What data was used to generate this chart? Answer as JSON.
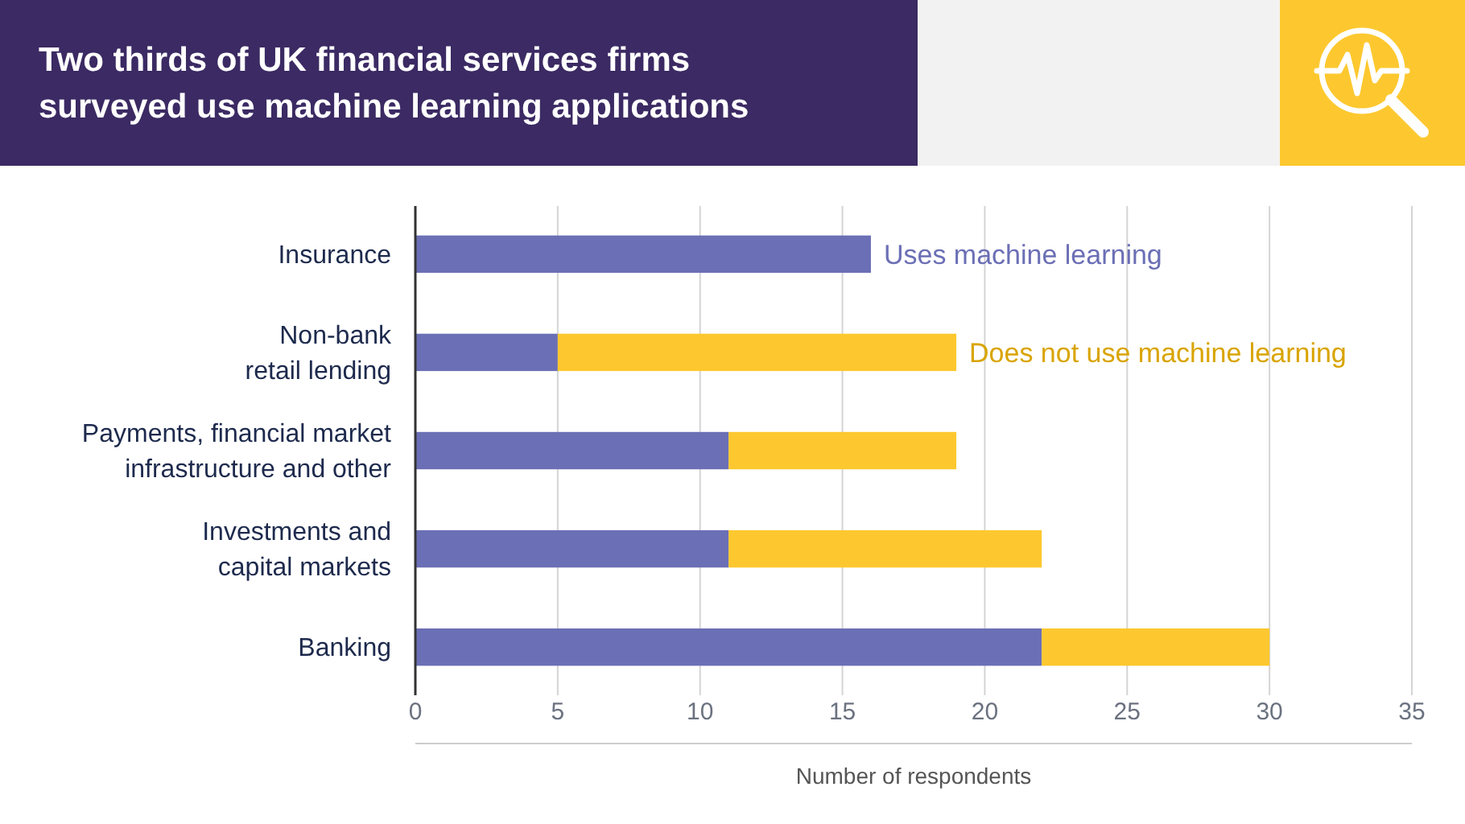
{
  "chart_data": {
    "type": "bar",
    "orientation": "horizontal",
    "stacked": true,
    "title": "Two thirds of UK financial services firms surveyed use machine learning applications",
    "xlabel": "Number of respondents",
    "categories": [
      "Insurance",
      "Non-bank retail lending",
      "Payments, financial market infrastructure and other",
      "Investments and capital markets",
      "Banking"
    ],
    "series": [
      {
        "name": "Uses machine learning",
        "color": "#6b6fb5",
        "values": [
          16,
          5,
          11,
          11,
          22
        ]
      },
      {
        "name": "Does not use machine learning",
        "color": "#fdc82f",
        "values": [
          0,
          14,
          8,
          11,
          8
        ]
      }
    ],
    "xlim": [
      0,
      35
    ],
    "xticks": [
      0,
      5,
      10,
      15,
      20,
      25,
      30,
      35
    ],
    "grid": "x",
    "legend": false
  }
}
